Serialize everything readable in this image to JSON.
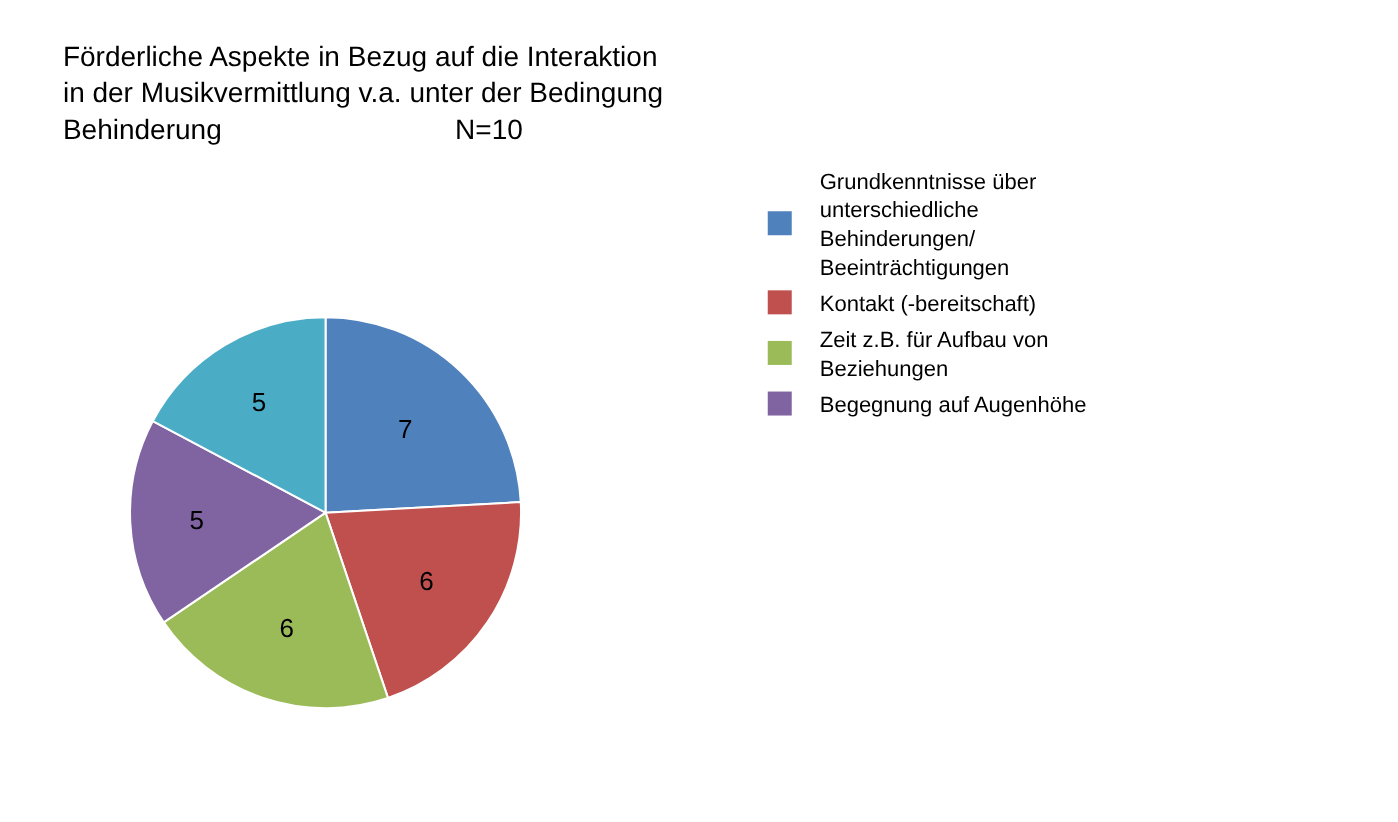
{
  "chart_data": {
    "type": "pie",
    "title": "Förderliche Aspekte in Bezug auf die Interaktion\nin der Musikvermittlung v.a. unter der Bedingung\nBehinderung                              N=10",
    "categories": [
      "Grundkenntnisse über\nunterschiedliche\nBehinderungen/\nBeeinträchtigungen",
      "Kontakt (-bereitschaft)",
      "Zeit z.B. für Aufbau von\nBeziehungen",
      "Begegnung auf Augenhöhe",
      null
    ],
    "values": [
      7,
      6,
      6,
      5,
      5
    ],
    "colors": [
      "#4f81bd",
      "#c0504d",
      "#9bbb59",
      "#8064a2",
      "#4bacc6"
    ],
    "data_labels": true,
    "legend": "right"
  }
}
